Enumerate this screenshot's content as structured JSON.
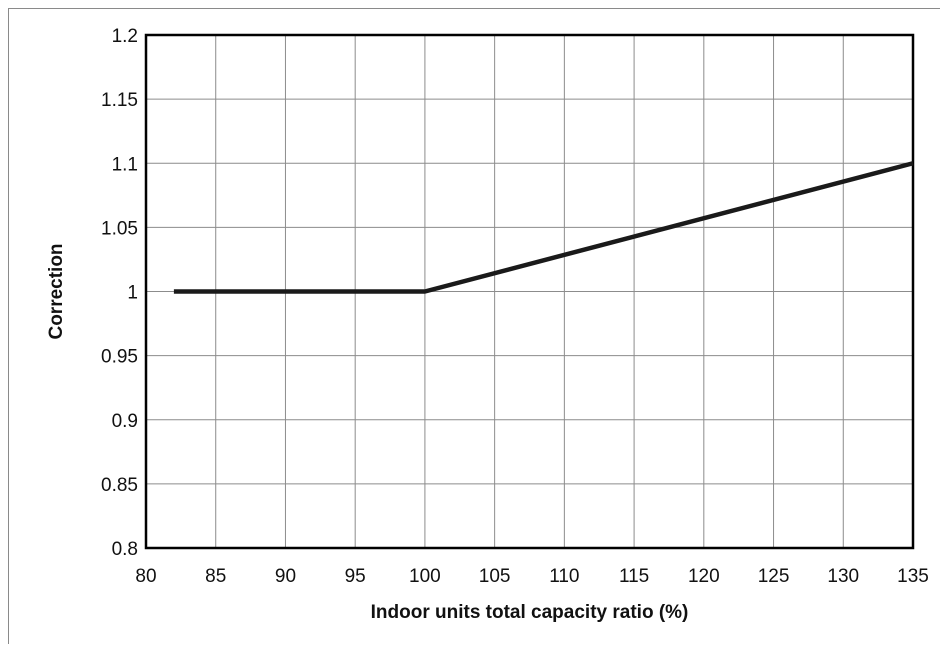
{
  "chart_data": {
    "type": "line",
    "title": "",
    "xlabel": "Indoor units total capacity ratio (%)",
    "ylabel": "Correction",
    "xlim": [
      80,
      135
    ],
    "ylim": [
      0.8,
      1.2
    ],
    "xticks": [
      80,
      85,
      90,
      95,
      100,
      105,
      110,
      115,
      120,
      125,
      130,
      135
    ],
    "yticks": [
      0.8,
      0.85,
      0.9,
      0.95,
      1,
      1.05,
      1.1,
      1.15,
      1.2
    ],
    "xtick_labels": [
      "80",
      "85",
      "90",
      "95",
      "100",
      "105",
      "110",
      "115",
      "120",
      "125",
      "130",
      "135"
    ],
    "ytick_labels": [
      "0.8",
      "0.85",
      "0.9",
      "0.95",
      "1",
      "1.05",
      "1.1",
      "1.15",
      "1.2"
    ],
    "grid": true,
    "legend": "none",
    "series": [
      {
        "color": "#1a1a1a",
        "x": [
          82,
          100,
          135
        ],
        "y": [
          1.0,
          1.0,
          1.1
        ]
      }
    ]
  }
}
